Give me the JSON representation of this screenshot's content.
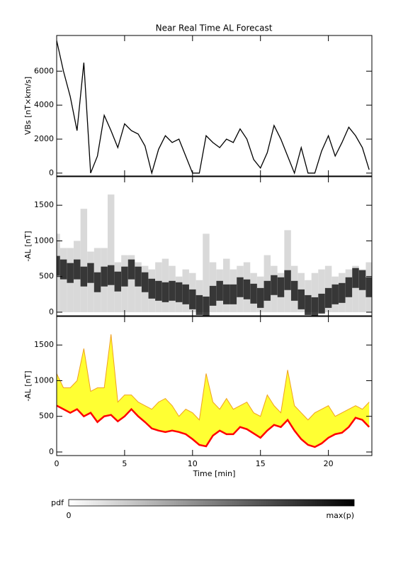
{
  "chart_data": [
    {
      "type": "line",
      "title": "Near Real Time AL Forecast",
      "ylabel": "VBs [nT×km/s]",
      "x": [
        0,
        0.5,
        1,
        1.5,
        2,
        2.5,
        3,
        3.5,
        4,
        4.5,
        5,
        5.5,
        6,
        6.5,
        7,
        7.5,
        8,
        8.5,
        9,
        9.5,
        10,
        10.5,
        11,
        11.5,
        12,
        12.5,
        13,
        13.5,
        14,
        14.5,
        15,
        15.5,
        16,
        16.5,
        17,
        17.5,
        18,
        18.5,
        19,
        19.5,
        20,
        20.5,
        21,
        21.5,
        22,
        22.5,
        23
      ],
      "values": [
        7800,
        6000,
        4500,
        2500,
        6500,
        0,
        1000,
        3400,
        2500,
        1500,
        2900,
        2500,
        2300,
        1600,
        0,
        1400,
        2200,
        1800,
        2000,
        1000,
        0,
        0,
        2200,
        1800,
        1500,
        2000,
        1800,
        2600,
        2000,
        800,
        300,
        1200,
        2800,
        2000,
        1000,
        0,
        1500,
        0,
        0,
        1300,
        2200,
        1000,
        1800,
        2700,
        2200,
        1500,
        200
      ],
      "color": "#000000",
      "xlim": [
        0,
        23.2
      ],
      "xticks": [
        0,
        5,
        10,
        15,
        20
      ],
      "ylim": [
        -170,
        8100
      ],
      "yticks": [
        0,
        2000,
        4000,
        6000
      ]
    },
    {
      "type": "density",
      "ylabel": "-AL [nT]",
      "x": [
        0,
        0.5,
        1,
        1.5,
        2,
        2.5,
        3,
        3.5,
        4,
        4.5,
        5,
        5.5,
        6,
        6.5,
        7,
        7.5,
        8,
        8.5,
        9,
        9.5,
        10,
        10.5,
        11,
        11.5,
        12,
        12.5,
        13,
        13.5,
        14,
        14.5,
        15,
        15.5,
        16,
        16.5,
        17,
        17.5,
        18,
        18.5,
        19,
        19.5,
        20,
        20.5,
        21,
        21.5,
        22,
        22.5,
        23
      ],
      "values": [
        650,
        600,
        550,
        600,
        500,
        550,
        420,
        500,
        520,
        430,
        500,
        600,
        500,
        420,
        330,
        300,
        280,
        300,
        280,
        250,
        180,
        100,
        80,
        230,
        300,
        250,
        250,
        350,
        320,
        260,
        200,
        300,
        380,
        350,
        450,
        300,
        180,
        100,
        70,
        120,
        200,
        250,
        270,
        350,
        480,
        450,
        350
      ],
      "upper": [
        1100,
        900,
        900,
        1000,
        1450,
        850,
        900,
        900,
        1650,
        700,
        800,
        800,
        700,
        650,
        600,
        700,
        750,
        650,
        500,
        600,
        550,
        450,
        1100,
        700,
        600,
        750,
        600,
        650,
        700,
        550,
        500,
        800,
        650,
        550,
        1150,
        650,
        550,
        450,
        550,
        600,
        650,
        500,
        550,
        600,
        650,
        600,
        700
      ],
      "color": "#000000",
      "xlim": [
        0,
        23.2
      ],
      "xticks": [
        0,
        5,
        10,
        15,
        20
      ],
      "ylim": [
        -50,
        1900
      ],
      "yticks": [
        0,
        500,
        1000,
        1500
      ]
    },
    {
      "type": "band",
      "ylabel": "-AL [nT]",
      "xlabel": "Time [min]",
      "x": [
        0,
        0.5,
        1,
        1.5,
        2,
        2.5,
        3,
        3.5,
        4,
        4.5,
        5,
        5.5,
        6,
        6.5,
        7,
        7.5,
        8,
        8.5,
        9,
        9.5,
        10,
        10.5,
        11,
        11.5,
        12,
        12.5,
        13,
        13.5,
        14,
        14.5,
        15,
        15.5,
        16,
        16.5,
        17,
        17.5,
        18,
        18.5,
        19,
        19.5,
        20,
        20.5,
        21,
        21.5,
        22,
        22.5,
        23
      ],
      "values": [
        650,
        600,
        550,
        600,
        500,
        550,
        420,
        500,
        520,
        430,
        500,
        600,
        500,
        420,
        330,
        300,
        280,
        300,
        280,
        250,
        180,
        100,
        80,
        230,
        300,
        250,
        250,
        350,
        320,
        260,
        200,
        300,
        380,
        350,
        450,
        300,
        180,
        100,
        70,
        120,
        200,
        250,
        270,
        350,
        480,
        450,
        350
      ],
      "upper": [
        1100,
        900,
        900,
        1000,
        1450,
        850,
        900,
        900,
        1650,
        700,
        800,
        800,
        700,
        650,
        600,
        700,
        750,
        650,
        500,
        600,
        550,
        450,
        1100,
        700,
        600,
        750,
        600,
        650,
        700,
        550,
        500,
        800,
        650,
        550,
        1150,
        650,
        550,
        450,
        550,
        600,
        650,
        500,
        550,
        600,
        650,
        600,
        700
      ],
      "color": "#ff0000",
      "band_color": "#ffff33",
      "edge_color": "#f0a020",
      "xlim": [
        0,
        23.2
      ],
      "xticks": [
        0,
        5,
        10,
        15,
        20
      ],
      "ylim": [
        -50,
        1900
      ],
      "yticks": [
        0,
        500,
        1000,
        1500
      ]
    }
  ],
  "colorbar": {
    "label": "pdf",
    "min_label": "0",
    "max_label": "max(p)"
  }
}
